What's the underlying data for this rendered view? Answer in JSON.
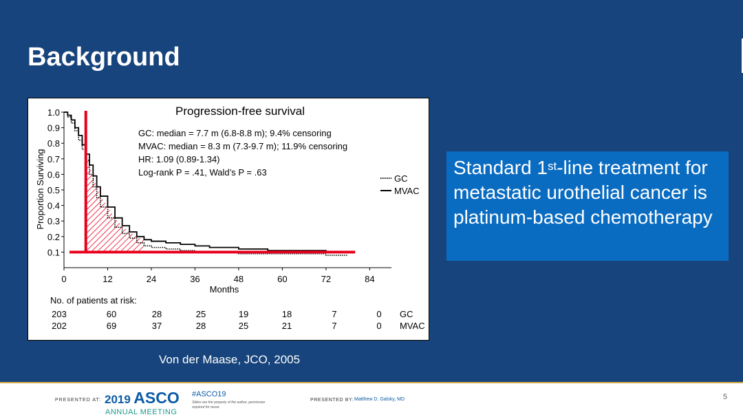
{
  "slide": {
    "title": "Background",
    "callout_pre": "Standard 1",
    "callout_sup": "st",
    "callout_post": "-line treatment for metastatic urothelial cancer is platinum-based chemotherapy",
    "citation": "Von der Maase, JCO, 2005",
    "colors": {
      "background": "#17447c",
      "callout": "#0a6cc1",
      "accent_line": "#d2a94a",
      "marker": "#e8001c"
    }
  },
  "footer": {
    "presented_at": "PRESENTED AT:",
    "asco_year": "2019",
    "asco_word": "ASCO",
    "asco_sub": "ANNUAL MEETING",
    "hashtag": "#ASCO19",
    "disclaimer": "Slides are the property of the author, permission required for reuse.",
    "presented_by": "PRESENTED BY:",
    "presenter": "Matthew D. Galsky, MD",
    "page_number": "5"
  },
  "chart_data": {
    "type": "line",
    "title": "Progression-free survival",
    "xlabel": "Months",
    "ylabel": "Proportion Surviving",
    "xlim": [
      0,
      90
    ],
    "ylim": [
      0,
      1.0
    ],
    "x_ticks": [
      "0",
      "12",
      "24",
      "36",
      "48",
      "60",
      "72",
      "84"
    ],
    "y_ticks": [
      "1.0",
      "0.9",
      "0.8",
      "0.7",
      "0.6",
      "0.5",
      "0.4",
      "0.3",
      "0.2",
      "0.1"
    ],
    "annotations": [
      "GC: median = 7.7 m (6.8-8.8 m); 9.4% censoring",
      "MVAC: median = 8.3 m (7.3-9.7 m); 11.9% censoring",
      "HR: 1.09 (0.89-1.34)",
      "Log-rank P = .41, Wald’s P = .63"
    ],
    "legend_position": "right",
    "series": [
      {
        "name": "GC",
        "style": "dotted",
        "x": [
          0,
          1,
          2,
          3,
          4,
          5,
          6,
          7,
          8,
          9,
          10,
          12,
          14,
          16,
          18,
          20,
          22,
          24,
          28,
          32,
          36,
          40,
          48,
          56,
          64,
          72,
          78
        ],
        "y": [
          1.0,
          0.97,
          0.93,
          0.88,
          0.82,
          0.76,
          0.69,
          0.6,
          0.52,
          0.45,
          0.39,
          0.32,
          0.26,
          0.22,
          0.19,
          0.16,
          0.14,
          0.13,
          0.12,
          0.11,
          0.1,
          0.1,
          0.09,
          0.09,
          0.09,
          0.08,
          0.08
        ]
      },
      {
        "name": "MVAC",
        "style": "solid",
        "x": [
          0,
          1,
          2,
          3,
          4,
          5,
          6,
          7,
          8,
          9,
          10,
          12,
          14,
          16,
          18,
          20,
          22,
          24,
          28,
          32,
          36,
          40,
          48,
          56,
          64,
          72,
          78
        ],
        "y": [
          1.0,
          0.98,
          0.95,
          0.9,
          0.85,
          0.79,
          0.73,
          0.66,
          0.59,
          0.52,
          0.46,
          0.39,
          0.32,
          0.27,
          0.23,
          0.2,
          0.18,
          0.17,
          0.16,
          0.15,
          0.14,
          0.13,
          0.12,
          0.11,
          0.11,
          0.1,
          0.1
        ]
      }
    ],
    "reference_lines": {
      "x_months": 6,
      "y_proportion": 0.1
    },
    "shaded_region": {
      "from_x": 6,
      "to_x": 22,
      "above": 0.1
    },
    "risk_table": {
      "header": "No. of patients at risk:",
      "rows": [
        {
          "label": "GC",
          "values": [
            "203",
            "60",
            "28",
            "25",
            "19",
            "18",
            "7",
            "0"
          ]
        },
        {
          "label": "MVAC",
          "values": [
            "202",
            "69",
            "37",
            "28",
            "25",
            "21",
            "7",
            "0"
          ]
        }
      ]
    }
  }
}
